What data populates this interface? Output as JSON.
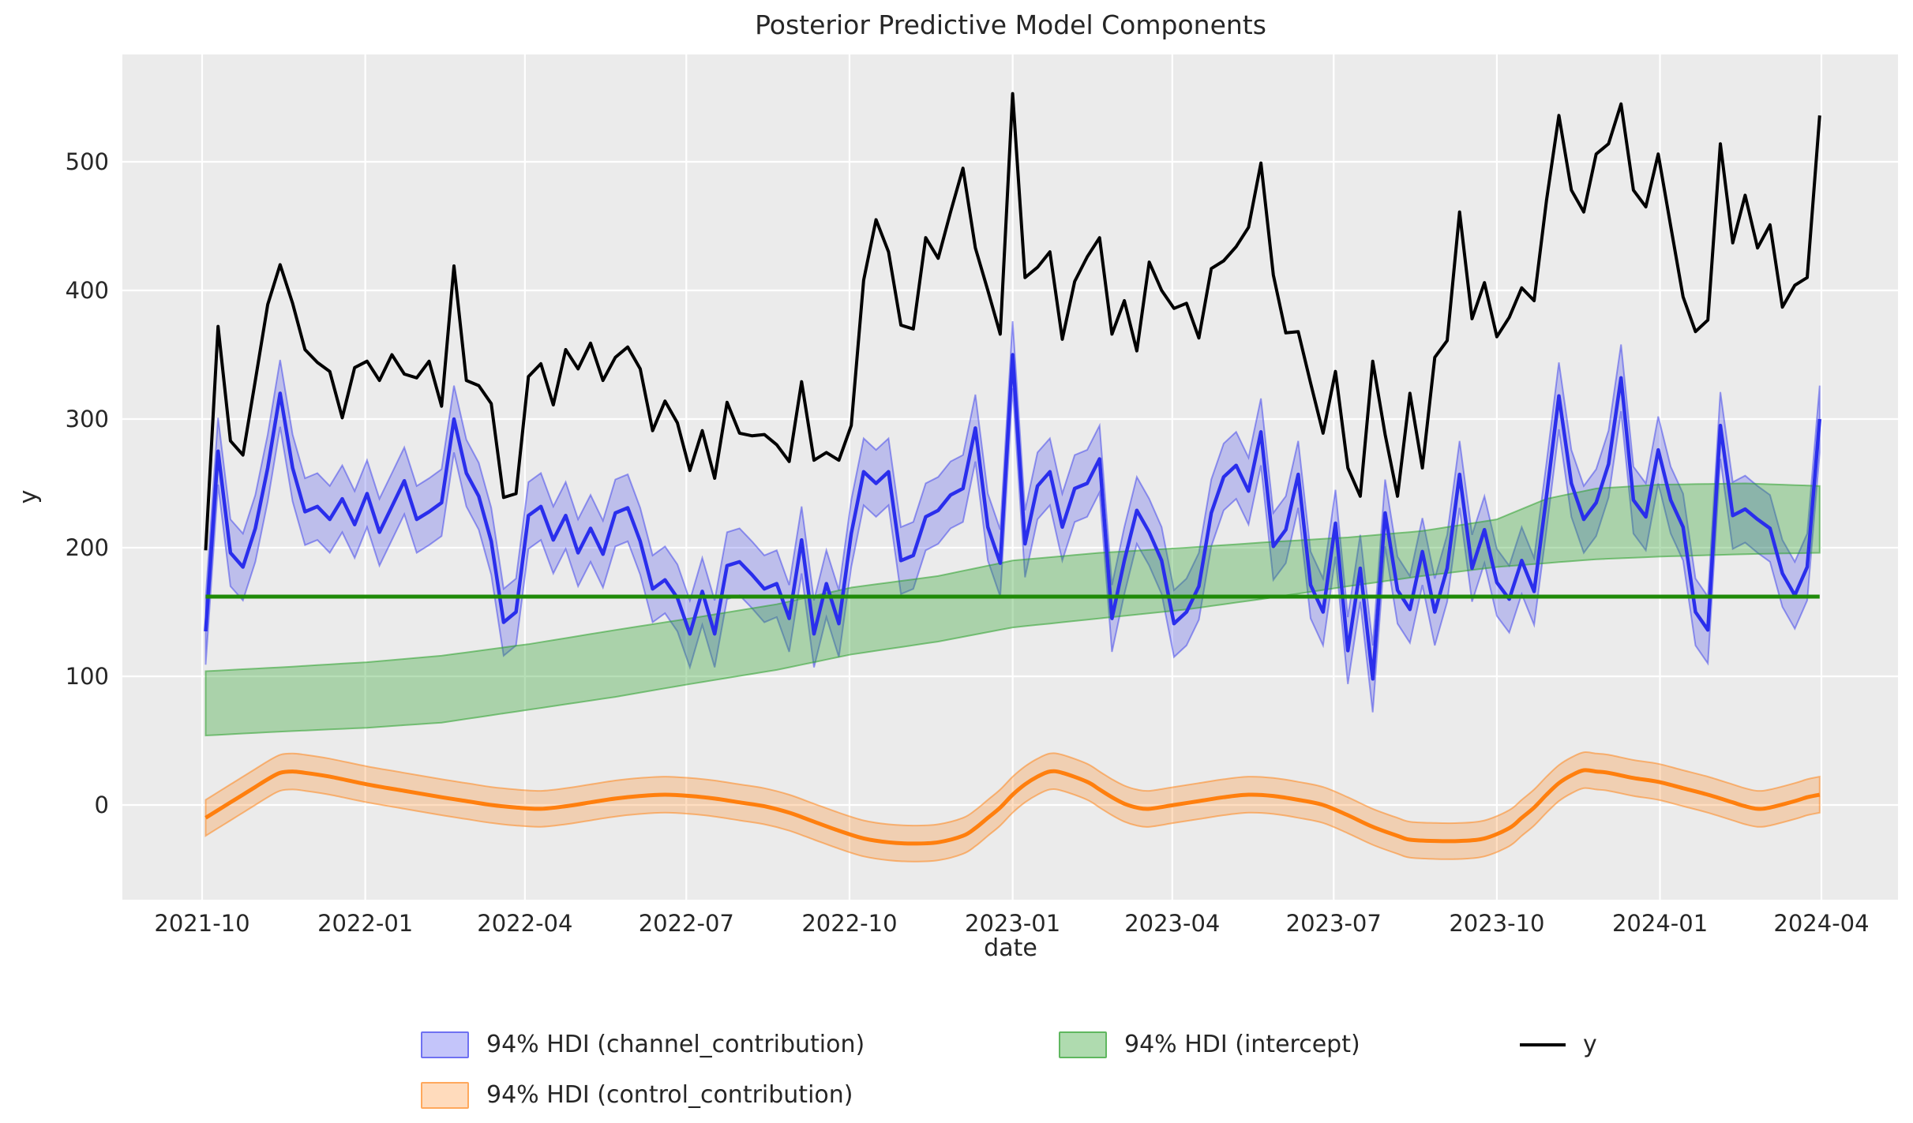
{
  "title": "Posterior Predictive Model Components",
  "xlabel": "date",
  "ylabel": "y",
  "legend": {
    "channel": "94% HDI (channel_contribution)",
    "control": "94% HDI (control_contribution)",
    "intercept": "94% HDI (intercept)",
    "y": "y"
  },
  "colors": {
    "background": "#ffffff",
    "plot_bg": "#ebebeb",
    "grid": "#ffffff",
    "text": "#262626",
    "y_line": "#000000",
    "channel": "#2a2eec",
    "intercept_band": "#2ca02c",
    "intercept_line": "#1f8a08",
    "control": "#ff7f0e"
  },
  "chart_data": {
    "type": "line",
    "title": "Posterior Predictive Model Components",
    "xlabel": "date",
    "ylabel": "y",
    "grid": true,
    "legend_position": "below",
    "x_start_date": "2021-10-03",
    "x_step_days": 7,
    "n_points": 131,
    "xtick_labels": [
      "2021-10",
      "2022-01",
      "2022-04",
      "2022-07",
      "2022-10",
      "2023-01",
      "2023-04",
      "2023-07",
      "2023-10",
      "2024-01",
      "2024-04"
    ],
    "ytick_values": [
      0,
      100,
      200,
      300,
      400,
      500
    ],
    "ylim": [
      -74,
      584
    ],
    "series": [
      {
        "name": "y",
        "kind": "line",
        "values": [
          198,
          372,
          283,
          272,
          330,
          389,
          420,
          390,
          354,
          344,
          337,
          301,
          340,
          345,
          330,
          350,
          335,
          332,
          345,
          310,
          419,
          330,
          326,
          312,
          239,
          242,
          333,
          343,
          311,
          354,
          339,
          359,
          330,
          348,
          356,
          339,
          291,
          314,
          297,
          260,
          291,
          254,
          313,
          289,
          287,
          288,
          280,
          267,
          329,
          268,
          274,
          268,
          295,
          408,
          455,
          430,
          373,
          370,
          441,
          425,
          461,
          495,
          433,
          400,
          366,
          553,
          410,
          418,
          430,
          362,
          407,
          426,
          441,
          366,
          392,
          353,
          422,
          400,
          386,
          390,
          363,
          417,
          423,
          434,
          449,
          499,
          412,
          367,
          368,
          328,
          289,
          337,
          262,
          240,
          345,
          288,
          240,
          320,
          262,
          348,
          361,
          461,
          378,
          406,
          364,
          379,
          402,
          392,
          470,
          536,
          478,
          461,
          506,
          514,
          545,
          478,
          465,
          506,
          450,
          395,
          368,
          377,
          514,
          437,
          474,
          433,
          451,
          387,
          404,
          410,
          536
        ]
      },
      {
        "name": "channel_contribution",
        "kind": "line+band",
        "hdi": "94%",
        "band_halfwidth": 26,
        "values": [
          135,
          275,
          196,
          185,
          215,
          262,
          320,
          262,
          228,
          232,
          222,
          238,
          218,
          242,
          212,
          232,
          252,
          222,
          228,
          235,
          300,
          258,
          240,
          205,
          142,
          150,
          225,
          232,
          206,
          225,
          196,
          215,
          195,
          227,
          231,
          205,
          168,
          175,
          161,
          133,
          166,
          133,
          186,
          189,
          179,
          168,
          172,
          145,
          206,
          133,
          172,
          141,
          211,
          259,
          250,
          259,
          190,
          194,
          224,
          229,
          241,
          246,
          293,
          216,
          188,
          350,
          203,
          248,
          259,
          216,
          246,
          250,
          269,
          145,
          190,
          229,
          212,
          190,
          141,
          150,
          170,
          227,
          255,
          264,
          244,
          290,
          201,
          214,
          257,
          171,
          150,
          219,
          120,
          184,
          98,
          227,
          167,
          152,
          197,
          150,
          184,
          257,
          184,
          214,
          173,
          160,
          190,
          166,
          240,
          318,
          250,
          222,
          235,
          265,
          332,
          237,
          224,
          276,
          237,
          216,
          150,
          136,
          295,
          225,
          230,
          222,
          215,
          180,
          163,
          185,
          300
        ]
      },
      {
        "name": "intercept",
        "kind": "band+hline",
        "hdi": "94%",
        "line_value": 162,
        "band_points": [
          [
            0,
            54,
            104
          ],
          [
            6,
            57,
            107
          ],
          [
            13,
            60,
            111
          ],
          [
            19,
            64,
            116
          ],
          [
            26,
            74,
            125
          ],
          [
            33,
            84,
            136
          ],
          [
            39,
            94,
            145
          ],
          [
            46,
            105,
            156
          ],
          [
            52,
            117,
            169
          ],
          [
            59,
            127,
            178
          ],
          [
            65,
            138,
            190
          ],
          [
            72,
            145,
            196
          ],
          [
            79,
            152,
            200
          ],
          [
            85,
            160,
            204
          ],
          [
            92,
            170,
            208
          ],
          [
            98,
            178,
            213
          ],
          [
            104,
            185,
            222
          ],
          [
            108,
            188,
            238
          ],
          [
            112,
            191,
            246
          ],
          [
            117,
            193,
            249
          ],
          [
            124,
            195,
            250
          ],
          [
            130,
            196,
            248
          ]
        ]
      },
      {
        "name": "control_contribution",
        "kind": "smooth-line+band",
        "hdi": "94%",
        "band_halfwidth": 14,
        "points": [
          [
            0,
            -10
          ],
          [
            1,
            -4
          ],
          [
            2,
            2
          ],
          [
            3,
            8
          ],
          [
            4,
            14
          ],
          [
            5,
            20
          ],
          [
            6,
            25
          ],
          [
            7,
            26
          ],
          [
            8,
            25
          ],
          [
            10,
            22
          ],
          [
            13,
            16
          ],
          [
            16,
            11
          ],
          [
            19,
            6
          ],
          [
            21,
            3
          ],
          [
            23,
            0
          ],
          [
            25,
            -2
          ],
          [
            27,
            -3
          ],
          [
            29,
            -1
          ],
          [
            31,
            2
          ],
          [
            33,
            5
          ],
          [
            35,
            7
          ],
          [
            37,
            8
          ],
          [
            39,
            7
          ],
          [
            41,
            5
          ],
          [
            43,
            2
          ],
          [
            45,
            -1
          ],
          [
            47,
            -6
          ],
          [
            49,
            -13
          ],
          [
            51,
            -20
          ],
          [
            53,
            -26
          ],
          [
            55,
            -29
          ],
          [
            57,
            -30
          ],
          [
            59,
            -29
          ],
          [
            61,
            -24
          ],
          [
            62,
            -18
          ],
          [
            63,
            -10
          ],
          [
            64,
            -2
          ],
          [
            65,
            8
          ],
          [
            66,
            16
          ],
          [
            67,
            22
          ],
          [
            68,
            26
          ],
          [
            69,
            25
          ],
          [
            71,
            18
          ],
          [
            72,
            12
          ],
          [
            73,
            6
          ],
          [
            74,
            1
          ],
          [
            75,
            -2
          ],
          [
            76,
            -3
          ],
          [
            78,
            0
          ],
          [
            80,
            3
          ],
          [
            82,
            6
          ],
          [
            84,
            8
          ],
          [
            86,
            7
          ],
          [
            88,
            4
          ],
          [
            90,
            0
          ],
          [
            92,
            -8
          ],
          [
            94,
            -17
          ],
          [
            96,
            -24
          ],
          [
            97,
            -27
          ],
          [
            99,
            -28
          ],
          [
            101,
            -28
          ],
          [
            103,
            -26
          ],
          [
            105,
            -18
          ],
          [
            106,
            -10
          ],
          [
            107,
            -2
          ],
          [
            108,
            8
          ],
          [
            109,
            17
          ],
          [
            110,
            23
          ],
          [
            111,
            27
          ],
          [
            112,
            26
          ],
          [
            113,
            25
          ],
          [
            115,
            21
          ],
          [
            117,
            18
          ],
          [
            119,
            13
          ],
          [
            121,
            8
          ],
          [
            123,
            2
          ],
          [
            124,
            -1
          ],
          [
            125,
            -3
          ],
          [
            126,
            -2
          ],
          [
            128,
            3
          ],
          [
            129,
            6
          ],
          [
            130,
            8
          ]
        ]
      }
    ]
  }
}
